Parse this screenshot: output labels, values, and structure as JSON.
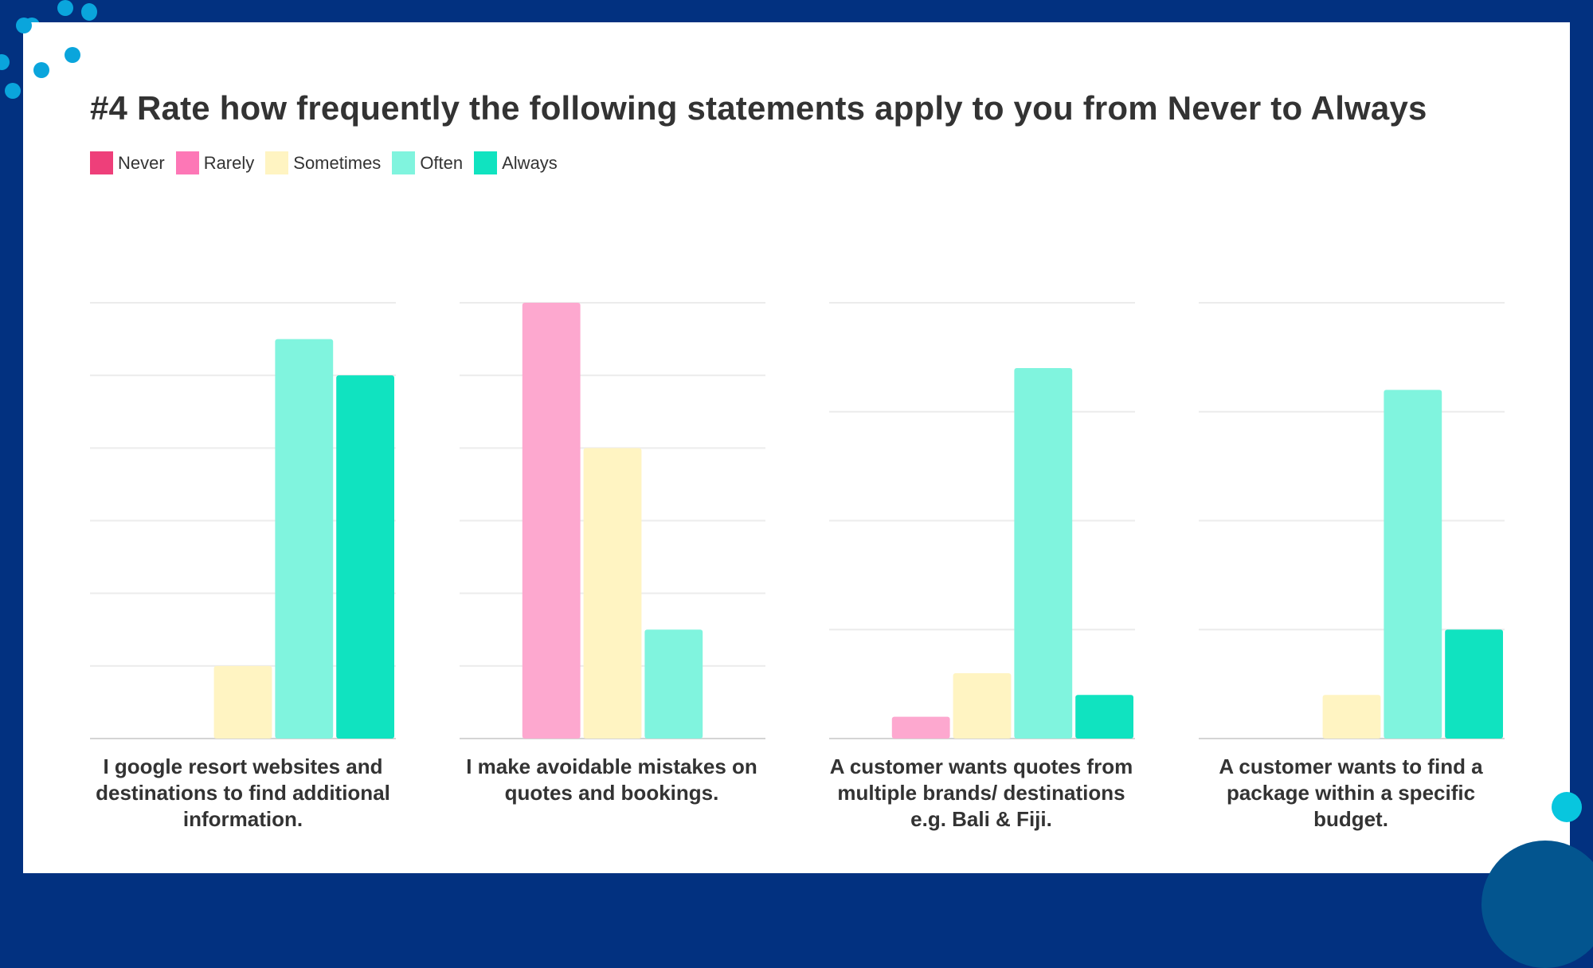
{
  "title": "#4 Rate how frequently the following statements apply to you from Never to Always",
  "colors": {
    "frame": "#023180",
    "dots": "#0aa5dc"
  },
  "chart_data": [
    {
      "type": "bar",
      "categories": [
        "Never",
        "Rarely",
        "Sometimes",
        "Often",
        "Always"
      ],
      "values": [
        0,
        0,
        2,
        11,
        10
      ],
      "xlabel": "I google resort websites and destinations to find additional information.",
      "ylim": [
        0,
        12
      ],
      "tick_step": 2,
      "grid": true
    },
    {
      "type": "bar",
      "categories": [
        "Never",
        "Rarely",
        "Sometimes",
        "Often",
        "Always"
      ],
      "values": [
        0,
        12,
        8,
        3,
        0
      ],
      "xlabel": "I make avoidable mistakes on quotes and bookings.",
      "ylim": [
        0,
        12
      ],
      "tick_step": 2,
      "grid": true
    },
    {
      "type": "bar",
      "categories": [
        "Never",
        "Rarely",
        "Sometimes",
        "Often",
        "Always"
      ],
      "values": [
        0,
        1,
        3,
        17,
        2
      ],
      "xlabel": "A customer wants quotes from multiple brands/ destinations e.g. Bali & Fiji.",
      "ylim": [
        0,
        20
      ],
      "tick_step": 5,
      "grid": true
    },
    {
      "type": "bar",
      "categories": [
        "Never",
        "Rarely",
        "Sometimes",
        "Often",
        "Always"
      ],
      "values": [
        0,
        0,
        2,
        16,
        5
      ],
      "xlabel": "A customer wants to find a package within a specific budget.",
      "ylim": [
        0,
        20
      ],
      "tick_step": 5,
      "grid": true
    }
  ],
  "legend": [
    {
      "label": "Never",
      "color": "#ee3f7a"
    },
    {
      "label": "Rarely",
      "color": "#fd77b6"
    },
    {
      "label": "Sometimes",
      "color": "#fff4c2"
    },
    {
      "label": "Often",
      "color": "#80f4de"
    },
    {
      "label": "Always",
      "color": "#10e3c0"
    }
  ],
  "bar_colors": [
    "#ee3f7a",
    "#fda8cf",
    "#fff4c2",
    "#80f4de",
    "#10e3c0"
  ]
}
